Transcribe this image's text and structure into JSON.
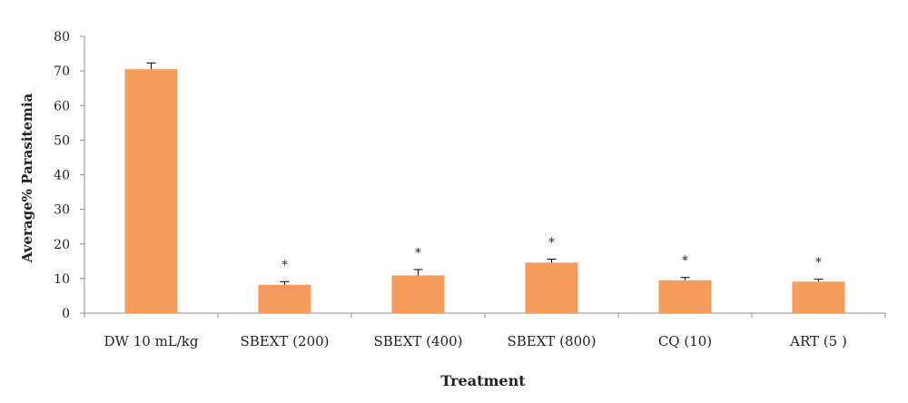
{
  "chart_data": {
    "type": "bar",
    "title": "",
    "xlabel": "Treatment",
    "ylabel": "Average% Parasitemia",
    "ylim": [
      0,
      80
    ],
    "yticks": [
      0,
      10,
      20,
      30,
      40,
      50,
      60,
      70,
      80
    ],
    "categories": [
      "DW 10 mL/kg",
      "SBEXT (200)",
      "SBEXT (400)",
      "SBEXT (800)",
      "CQ (10)",
      "ART (5 )"
    ],
    "values": [
      70.5,
      8.2,
      10.9,
      14.6,
      9.5,
      9.1
    ],
    "errors": [
      1.8,
      0.9,
      1.7,
      1.0,
      0.8,
      0.7
    ],
    "significance": [
      "",
      "*",
      "*",
      "*",
      "*",
      "*"
    ],
    "bar_color": "#F59B5C",
    "axis_color": "#8C8C8C",
    "grid": false,
    "legend": "none"
  }
}
